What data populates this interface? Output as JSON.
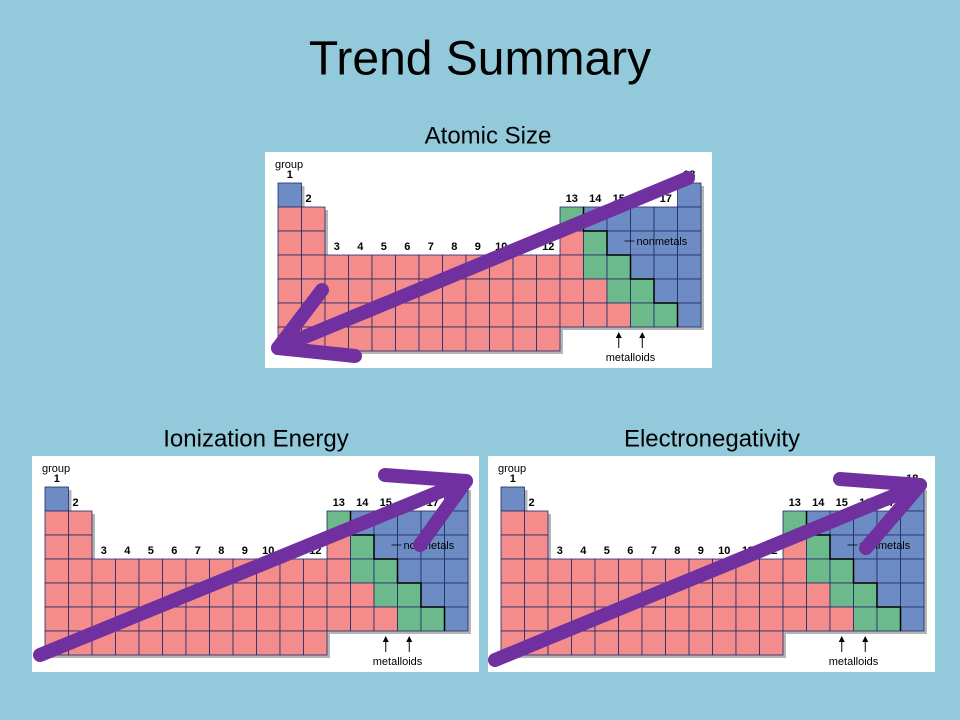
{
  "title": "Trend Summary",
  "panels": [
    {
      "label": "Atomic Size"
    },
    {
      "label": "Ionization Energy"
    },
    {
      "label": "Electronegativity"
    }
  ],
  "table": {
    "group_label": "group",
    "groups": [
      "1",
      "2",
      "3",
      "4",
      "5",
      "6",
      "7",
      "8",
      "9",
      "10",
      "11",
      "12",
      "13",
      "14",
      "15",
      "16",
      "17",
      "18"
    ],
    "nonmetals_label": "nonmetals",
    "metalloids_label": "metalloids"
  }
}
